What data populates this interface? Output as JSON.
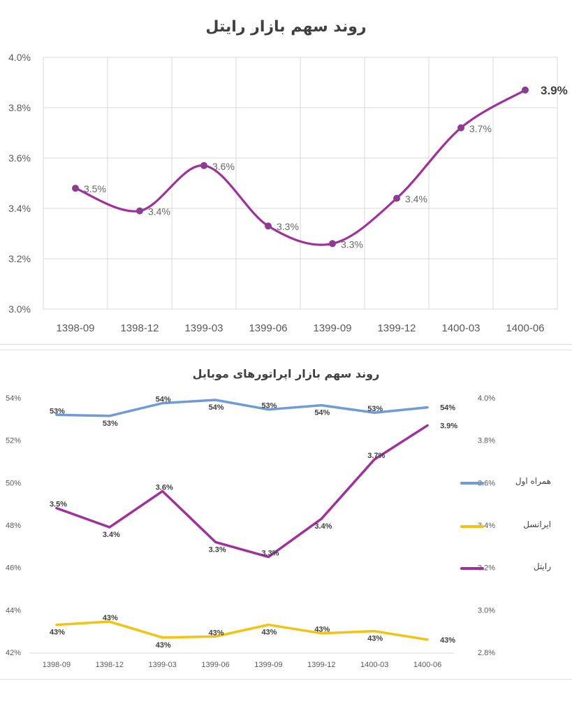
{
  "chart_data": [
    {
      "type": "line",
      "title": "روند سهم بازار رایتل",
      "categories": [
        "1398-09",
        "1398-12",
        "1399-03",
        "1399-06",
        "1399-09",
        "1399-12",
        "1400-03",
        "1400-06"
      ],
      "series": [
        {
          "values": [
            3.48,
            3.39,
            3.57,
            3.33,
            3.26,
            3.44,
            3.72,
            3.87
          ],
          "labels": [
            "3.5%",
            "3.4%",
            "3.6%",
            "3.3%",
            "3.3%",
            "3.4%",
            "3.7%",
            "3.9%"
          ]
        }
      ],
      "yticks": [
        "3.0%",
        "3.2%",
        "3.4%",
        "3.6%",
        "3.8%",
        "4.0%"
      ],
      "ylim": [
        3.0,
        4.0
      ],
      "grid": true,
      "smooth": true,
      "color": "#a0309b"
    },
    {
      "type": "line",
      "title": "روند سهم بازار اپراتورهای موبایل",
      "categories": [
        "1398-09",
        "1398-12",
        "1399-03",
        "1399-06",
        "1399-09",
        "1399-12",
        "1400-03",
        "1400-06"
      ],
      "series": [
        {
          "name": "همراه اول",
          "axis": "left",
          "color": "#6f9bd7",
          "values": [
            53.2,
            53.15,
            53.75,
            53.9,
            53.45,
            53.65,
            53.3,
            53.55
          ],
          "labels": [
            "53%",
            "53%",
            "54%",
            "54%",
            "53%",
            "54%",
            "53%",
            "54%"
          ]
        },
        {
          "name": "ایرانسل",
          "axis": "left",
          "color": "#f2c314",
          "values": [
            43.3,
            43.45,
            42.7,
            42.75,
            43.3,
            42.9,
            43.0,
            42.6
          ],
          "labels": [
            "43%",
            "43%",
            "43%",
            "43%",
            "43%",
            "43%",
            "43%",
            "43%"
          ]
        },
        {
          "name": "رایتل",
          "axis": "right",
          "color": "#a0309b",
          "values": [
            3.48,
            3.39,
            3.56,
            3.32,
            3.25,
            3.43,
            3.71,
            3.87
          ],
          "labels": [
            "3.5%",
            "3.4%",
            "3.6%",
            "3.3%",
            "3.3%",
            "3.4%",
            "3.7%",
            "3.9%"
          ]
        }
      ],
      "yticks_left": [
        "42%",
        "44%",
        "46%",
        "48%",
        "50%",
        "52%",
        "54%"
      ],
      "ylim_left": [
        42,
        54
      ],
      "yticks_right": [
        "2.8%",
        "3.0%",
        "3.2%",
        "3.4%",
        "3.6%",
        "3.8%",
        "4.0%"
      ],
      "ylim_right": [
        2.8,
        4.0
      ],
      "legend": "right",
      "grid": false
    }
  ]
}
